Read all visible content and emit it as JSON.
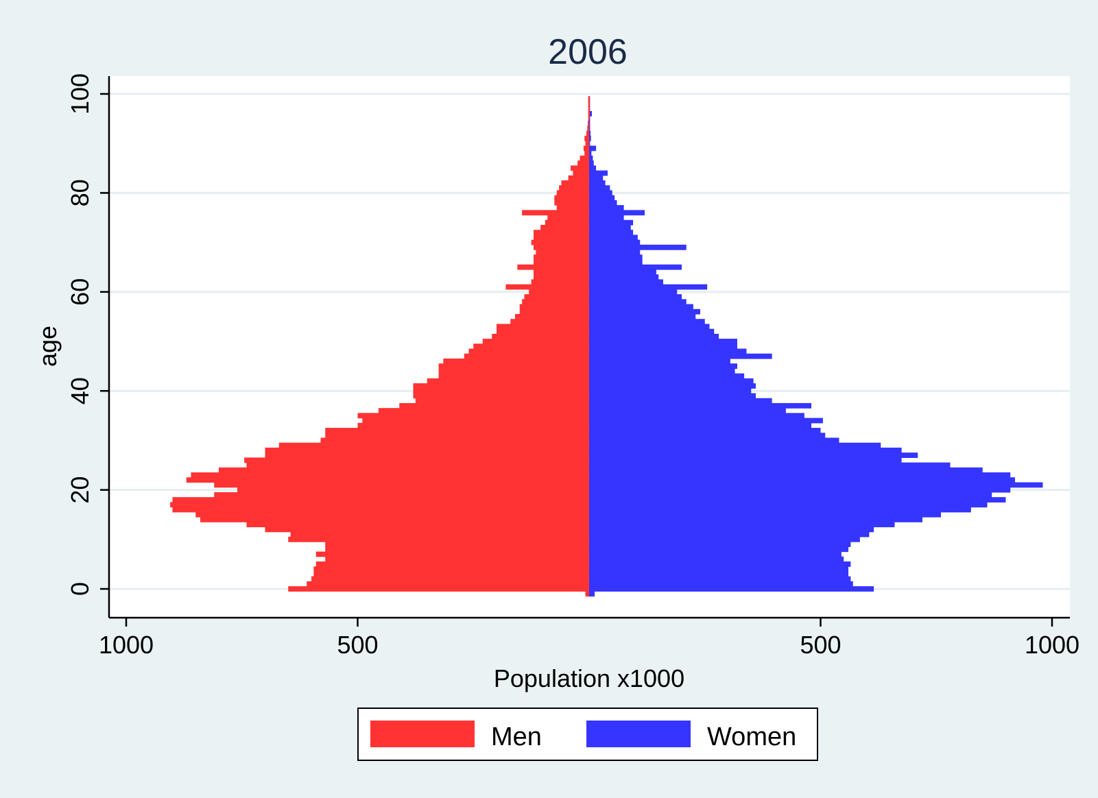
{
  "chart_data": {
    "type": "bar",
    "orientation": "horizontal",
    "layout": "population-pyramid",
    "title": "2006",
    "xlabel": "Population x1000",
    "ylabel": "age",
    "xlim": [
      -1000,
      1000
    ],
    "ylim": [
      -5,
      104
    ],
    "xticks": [
      {
        "value": -1000,
        "label": "1000"
      },
      {
        "value": -500,
        "label": "500"
      },
      {
        "value": 500,
        "label": "500"
      },
      {
        "value": 1000,
        "label": "1000"
      }
    ],
    "yticks": [
      {
        "value": 0,
        "label": "0"
      },
      {
        "value": 20,
        "label": "20"
      },
      {
        "value": 40,
        "label": "40"
      },
      {
        "value": 60,
        "label": "60"
      },
      {
        "value": 80,
        "label": "80"
      },
      {
        "value": 100,
        "label": "100"
      }
    ],
    "grid": true,
    "legend_position": "bottom",
    "ages": [
      -1,
      0,
      1,
      2,
      3,
      4,
      5,
      6,
      7,
      8,
      9,
      10,
      11,
      12,
      13,
      14,
      15,
      16,
      17,
      18,
      19,
      20,
      21,
      22,
      23,
      24,
      25,
      26,
      27,
      28,
      29,
      30,
      31,
      32,
      33,
      34,
      35,
      36,
      37,
      38,
      39,
      40,
      41,
      42,
      43,
      44,
      45,
      46,
      47,
      48,
      49,
      50,
      51,
      52,
      53,
      54,
      55,
      56,
      57,
      58,
      59,
      60,
      61,
      62,
      63,
      64,
      65,
      66,
      67,
      68,
      69,
      70,
      71,
      72,
      73,
      74,
      75,
      76,
      77,
      78,
      79,
      80,
      81,
      82,
      83,
      84,
      85,
      86,
      87,
      88,
      89,
      90,
      91,
      92,
      93,
      94,
      95,
      96,
      97,
      98,
      99
    ],
    "series": [
      {
        "name": "Men",
        "color": "#ff3333",
        "values": [
          8,
          650,
          610,
          600,
          595,
          595,
          590,
          570,
          590,
          570,
          570,
          650,
          645,
          700,
          740,
          840,
          850,
          900,
          905,
          900,
          810,
          760,
          810,
          870,
          860,
          800,
          740,
          745,
          700,
          700,
          670,
          580,
          570,
          570,
          500,
          490,
          500,
          455,
          410,
          375,
          380,
          380,
          380,
          350,
          325,
          325,
          325,
          315,
          270,
          260,
          250,
          230,
          210,
          200,
          200,
          170,
          160,
          150,
          150,
          145,
          140,
          130,
          180,
          125,
          120,
          120,
          155,
          120,
          120,
          115,
          120,
          125,
          120,
          120,
          105,
          95,
          90,
          145,
          70,
          75,
          75,
          70,
          65,
          60,
          45,
          35,
          40,
          25,
          20,
          10,
          12,
          8,
          10,
          6,
          4,
          3,
          2,
          2,
          2,
          2,
          2
        ]
      },
      {
        "name": "Women",
        "color": "#3535ff",
        "values": [
          12,
          615,
          570,
          565,
          560,
          560,
          565,
          550,
          545,
          560,
          565,
          585,
          605,
          615,
          660,
          720,
          760,
          825,
          860,
          900,
          870,
          910,
          980,
          920,
          910,
          850,
          780,
          675,
          710,
          675,
          630,
          540,
          510,
          500,
          480,
          505,
          465,
          425,
          480,
          395,
          360,
          350,
          360,
          355,
          335,
          315,
          320,
          305,
          395,
          340,
          320,
          320,
          280,
          270,
          260,
          250,
          230,
          240,
          225,
          210,
          200,
          190,
          255,
          160,
          150,
          145,
          200,
          115,
          115,
          110,
          210,
          110,
          105,
          95,
          90,
          95,
          75,
          120,
          75,
          60,
          55,
          50,
          45,
          35,
          30,
          40,
          15,
          10,
          8,
          5,
          15,
          2,
          4,
          3,
          2,
          2,
          2,
          6,
          2,
          2,
          2
        ]
      }
    ]
  }
}
